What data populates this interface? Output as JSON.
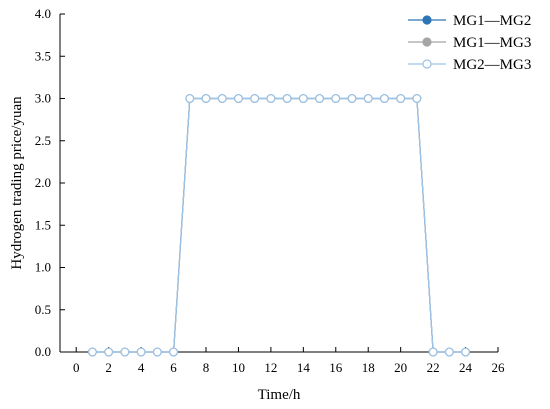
{
  "chart_data": {
    "type": "line",
    "title": "",
    "xlabel": "Time/h",
    "ylabel": "Hydrogen trading price/yuan",
    "xlim": [
      -1,
      26
    ],
    "ylim": [
      0,
      4
    ],
    "xticks": [
      0,
      2,
      4,
      6,
      8,
      10,
      12,
      14,
      16,
      18,
      20,
      22,
      24,
      26
    ],
    "yticks": [
      "0.0",
      "0.5",
      "1.0",
      "1.5",
      "2.0",
      "2.5",
      "3.0",
      "3.5",
      "4.0"
    ],
    "x": [
      1,
      2,
      3,
      4,
      5,
      6,
      7,
      8,
      9,
      10,
      11,
      12,
      13,
      14,
      15,
      16,
      17,
      18,
      19,
      20,
      21,
      22,
      23,
      24
    ],
    "series": [
      {
        "name": "MG1—MG2",
        "color": "#2e75b6",
        "marker": "filled-circle",
        "values": [
          0,
          0,
          0,
          0,
          0,
          0,
          3,
          3,
          3,
          3,
          3,
          3,
          3,
          3,
          3,
          3,
          3,
          3,
          3,
          3,
          3,
          0,
          0,
          0
        ]
      },
      {
        "name": "MG1—MG3",
        "color": "#a5a5a5",
        "marker": "filled-circle",
        "values": [
          0,
          0,
          0,
          0,
          0,
          0,
          3,
          3,
          3,
          3,
          3,
          3,
          3,
          3,
          3,
          3,
          3,
          3,
          3,
          3,
          3,
          0,
          0,
          0
        ]
      },
      {
        "name": "MG2—MG3",
        "color": "#9dc3e6",
        "marker": "hollow-circle",
        "values": [
          0,
          0,
          0,
          0,
          0,
          0,
          3,
          3,
          3,
          3,
          3,
          3,
          3,
          3,
          3,
          3,
          3,
          3,
          3,
          3,
          3,
          0,
          0,
          0
        ]
      }
    ],
    "legend": "top-right",
    "grid": false
  }
}
